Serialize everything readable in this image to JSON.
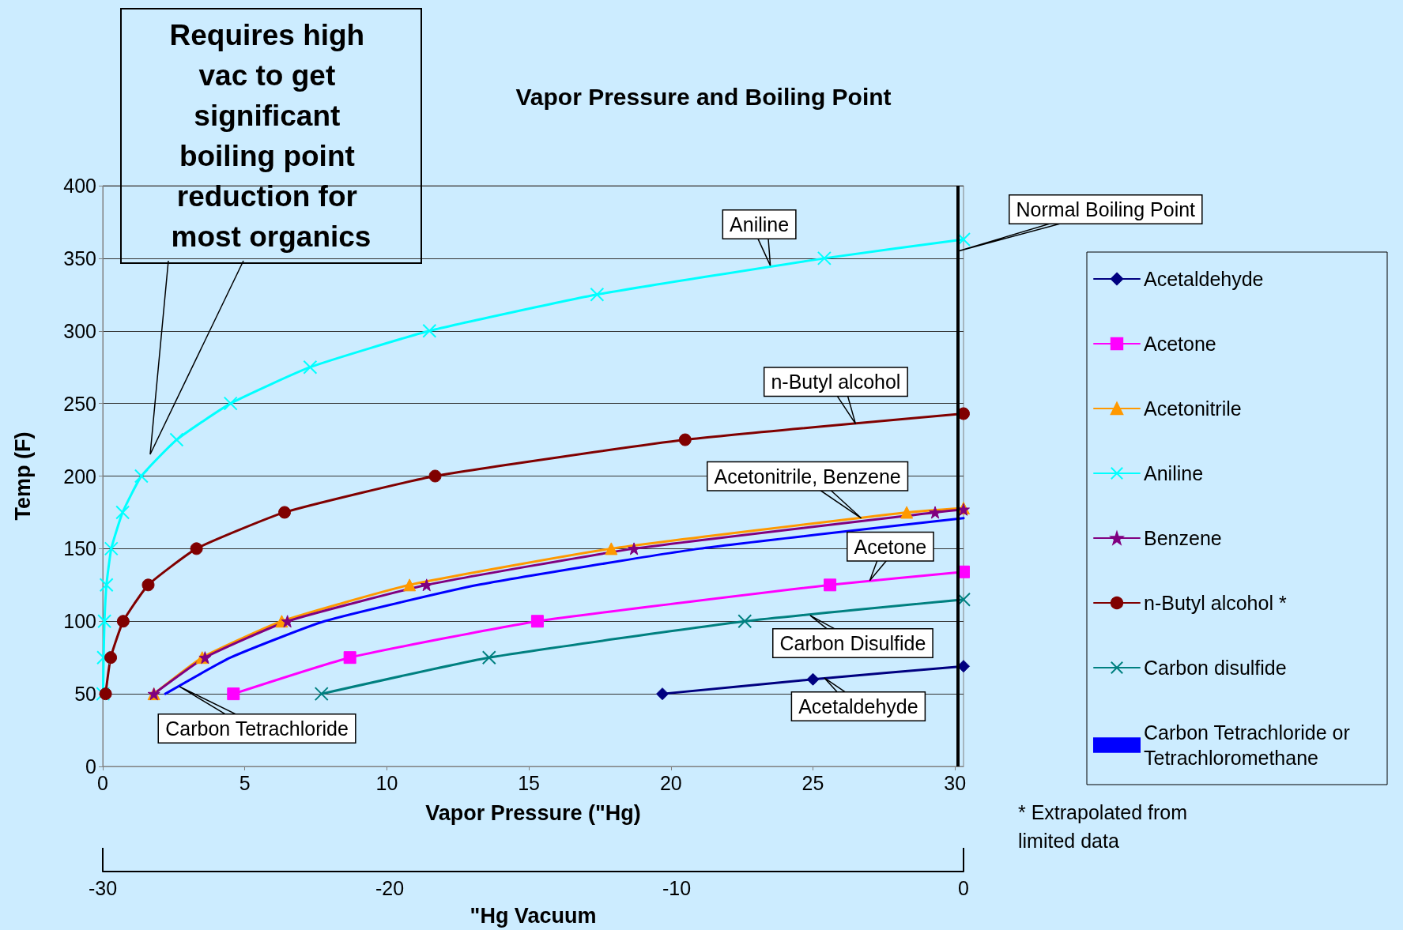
{
  "chart_data": {
    "type": "line",
    "title": "Vapor Pressure and Boiling Point",
    "xlabel": "Vapor Pressure (\"Hg)",
    "ylabel": "Temp (F)",
    "x2label": "\"Hg Vacuum",
    "xlim": [
      0,
      30.3
    ],
    "xticks": [
      0,
      5,
      10,
      15,
      20,
      25,
      30
    ],
    "ylim": [
      0,
      400
    ],
    "yticks": [
      0,
      50,
      100,
      150,
      200,
      250,
      300,
      350,
      400
    ],
    "x2lim": [
      -30,
      0
    ],
    "x2ticks": [
      -30,
      -20,
      -10,
      0
    ],
    "grid": "y",
    "legend": "right",
    "series": [
      {
        "name": "Acetaldehyde",
        "color": "#000080",
        "marker": "diamond",
        "x": [
          19.7,
          25,
          30.3
        ],
        "values": [
          50,
          60,
          69
        ]
      },
      {
        "name": "Acetone",
        "color": "#ff00ff",
        "marker": "square",
        "x": [
          4.6,
          8.7,
          15.3,
          25.6,
          30.3
        ],
        "values": [
          50,
          75,
          100,
          125,
          134
        ]
      },
      {
        "name": "Acetonitrile",
        "color": "#ff9900",
        "marker": "triangle",
        "x": [
          1.8,
          3.5,
          6.3,
          10.8,
          17.9,
          28.3,
          30.3
        ],
        "values": [
          50,
          75,
          100,
          125,
          150,
          175,
          178
        ]
      },
      {
        "name": "Aniline",
        "color": "#00ffff",
        "marker": "cross",
        "x": [
          0.01,
          0.03,
          0.06,
          0.13,
          0.3,
          0.7,
          1.36,
          2.6,
          4.5,
          7.3,
          11.5,
          17.4,
          25.4,
          30.3
        ],
        "values": [
          50,
          75,
          100,
          125,
          150,
          175,
          200,
          225,
          250,
          275,
          300,
          325,
          350,
          363
        ]
      },
      {
        "name": "Benzene",
        "color": "#800080",
        "marker": "star",
        "x": [
          1.8,
          3.6,
          6.5,
          11.4,
          18.7,
          29.3,
          30.3
        ],
        "values": [
          50,
          75,
          100,
          125,
          150,
          175,
          177
        ]
      },
      {
        "name": "n-Butyl alcohol *",
        "color": "#800000",
        "marker": "circle",
        "x": [
          0.1,
          0.28,
          0.72,
          1.6,
          3.3,
          6.4,
          11.7,
          20.5,
          30.3
        ],
        "values": [
          50,
          75,
          100,
          125,
          150,
          175,
          200,
          225,
          243
        ]
      },
      {
        "name": "Carbon disulfide",
        "color": "#008080",
        "marker": "cross",
        "x": [
          7.7,
          13.6,
          22.6,
          30.3
        ],
        "values": [
          50,
          75,
          100,
          115
        ]
      },
      {
        "name": "Carbon Tetrachloride or Tetrachloromethane",
        "color": "#0000ff",
        "marker": "none",
        "x": [
          2.2,
          4.5,
          7.8,
          13.2,
          21,
          30.3
        ],
        "values": [
          50,
          75,
          100,
          125,
          150,
          171
        ]
      }
    ],
    "ref_lines": [
      {
        "axis": "x",
        "value": 30.1,
        "color": "#000000",
        "label": "Normal Boiling Point"
      }
    ],
    "annotations": [
      "Requires high vac to get significant boiling point reduction for most organics",
      {
        "text": "Aniline",
        "x": 23.5,
        "y": 345
      },
      {
        "text": "n-Butyl alcohol",
        "x": 26.5,
        "y": 236
      },
      {
        "text": "Acetonitrile, Benzene",
        "x": 26.7,
        "y": 171
      },
      {
        "text": "Acetone",
        "x": 27,
        "y": 128
      },
      {
        "text": "Carbon Disulfide",
        "x": 24.9,
        "y": 104
      },
      {
        "text": "Acetaldehyde",
        "x": 25.4,
        "y": 61
      },
      {
        "text": "Carbon Tetrachloride",
        "x": 2.7,
        "y": 55
      },
      "* Extrapolated from limited data"
    ]
  }
}
